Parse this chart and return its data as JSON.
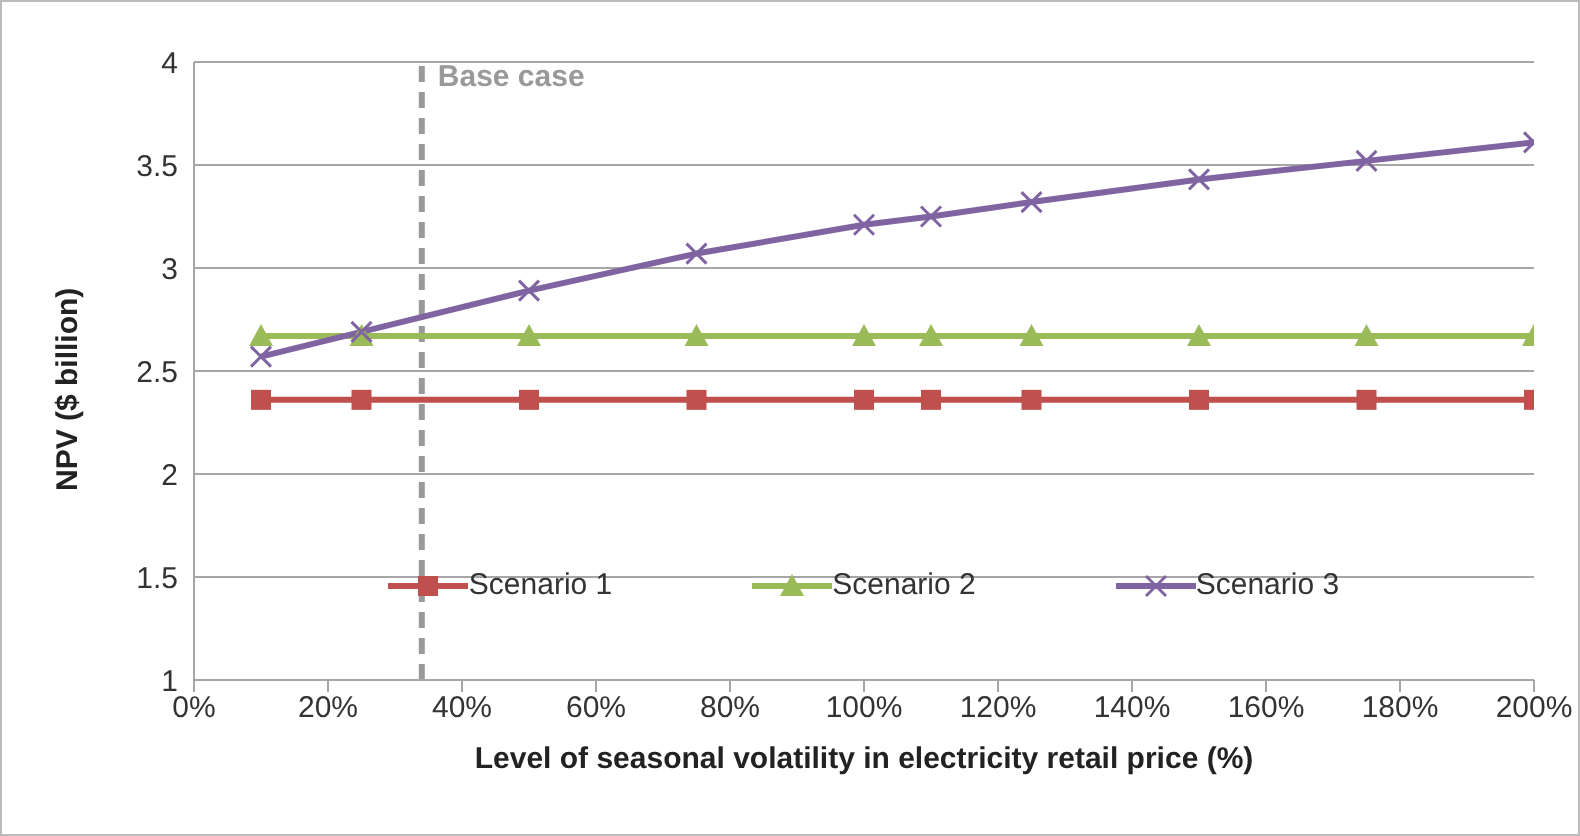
{
  "chart_data": {
    "type": "line",
    "xlabel": "Level of seasonal volatility in electricity retail price (%)",
    "ylabel": "NPV ($ billion)",
    "x": [
      10,
      25,
      50,
      75,
      100,
      110,
      125,
      150,
      175,
      200
    ],
    "series": [
      {
        "name": "Scenario 1",
        "color": "#c0504d",
        "marker": "square",
        "values": [
          2.36,
          2.36,
          2.36,
          2.36,
          2.36,
          2.36,
          2.36,
          2.36,
          2.36,
          2.36
        ]
      },
      {
        "name": "Scenario 2",
        "color": "#9bbb59",
        "marker": "triangle",
        "values": [
          2.67,
          2.67,
          2.67,
          2.67,
          2.67,
          2.67,
          2.67,
          2.67,
          2.67,
          2.67
        ]
      },
      {
        "name": "Scenario 3",
        "color": "#8064a2",
        "marker": "cross",
        "values": [
          2.57,
          2.69,
          2.89,
          3.07,
          3.21,
          3.25,
          3.32,
          3.43,
          3.52,
          3.61
        ]
      }
    ],
    "xlim": [
      0,
      200
    ],
    "xticks": [
      {
        "value": 0,
        "label": "0%"
      },
      {
        "value": 20,
        "label": "20%"
      },
      {
        "value": 40,
        "label": "40%"
      },
      {
        "value": 60,
        "label": "60%"
      },
      {
        "value": 80,
        "label": "80%"
      },
      {
        "value": 100,
        "label": "100%"
      },
      {
        "value": 120,
        "label": "120%"
      },
      {
        "value": 140,
        "label": "140%"
      },
      {
        "value": 160,
        "label": "160%"
      },
      {
        "value": 180,
        "label": "180%"
      },
      {
        "value": 200,
        "label": "200%"
      }
    ],
    "ylim": [
      1,
      4
    ],
    "yticks": [
      1,
      1.5,
      2,
      2.5,
      3,
      3.5,
      4
    ],
    "grid": "y",
    "legend": "bottom",
    "line_style": "solid",
    "ref_lines": [
      {
        "axis": "x",
        "value": 34,
        "label": "Base case",
        "color": "#999999",
        "line_style": "dashed"
      }
    ]
  }
}
